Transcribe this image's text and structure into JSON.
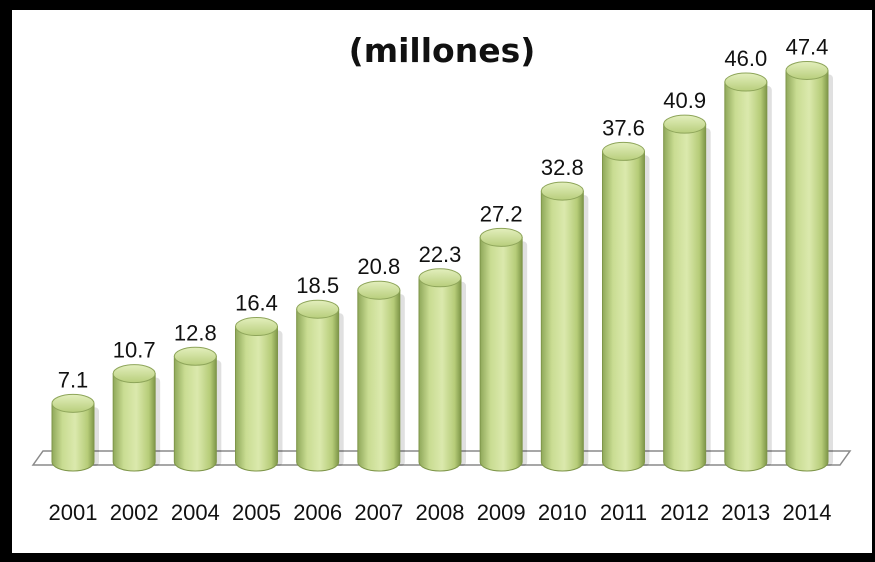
{
  "chart_data": {
    "type": "bar",
    "title": "(millones)",
    "categories": [
      "2001",
      "2002",
      "2004",
      "2005",
      "2006",
      "2007",
      "2008",
      "2009",
      "2010",
      "2011",
      "2012",
      "2013",
      "2014"
    ],
    "values": [
      7.1,
      10.7,
      12.8,
      16.4,
      18.5,
      20.8,
      22.3,
      27.2,
      32.8,
      37.6,
      40.9,
      46.0,
      47.4
    ],
    "value_labels": [
      "7.1",
      "10.7",
      "12.8",
      "16.4",
      "18.5",
      "20.8",
      "22.3",
      "27.2",
      "32.8",
      "37.6",
      "40.9",
      "46.0",
      "47.4"
    ],
    "xlabel": "",
    "ylabel": "",
    "ylim": [
      0,
      50
    ],
    "grid": false,
    "legend": "none",
    "bar_color": "#c4d98a",
    "bar_style": "3d-cylinder"
  }
}
